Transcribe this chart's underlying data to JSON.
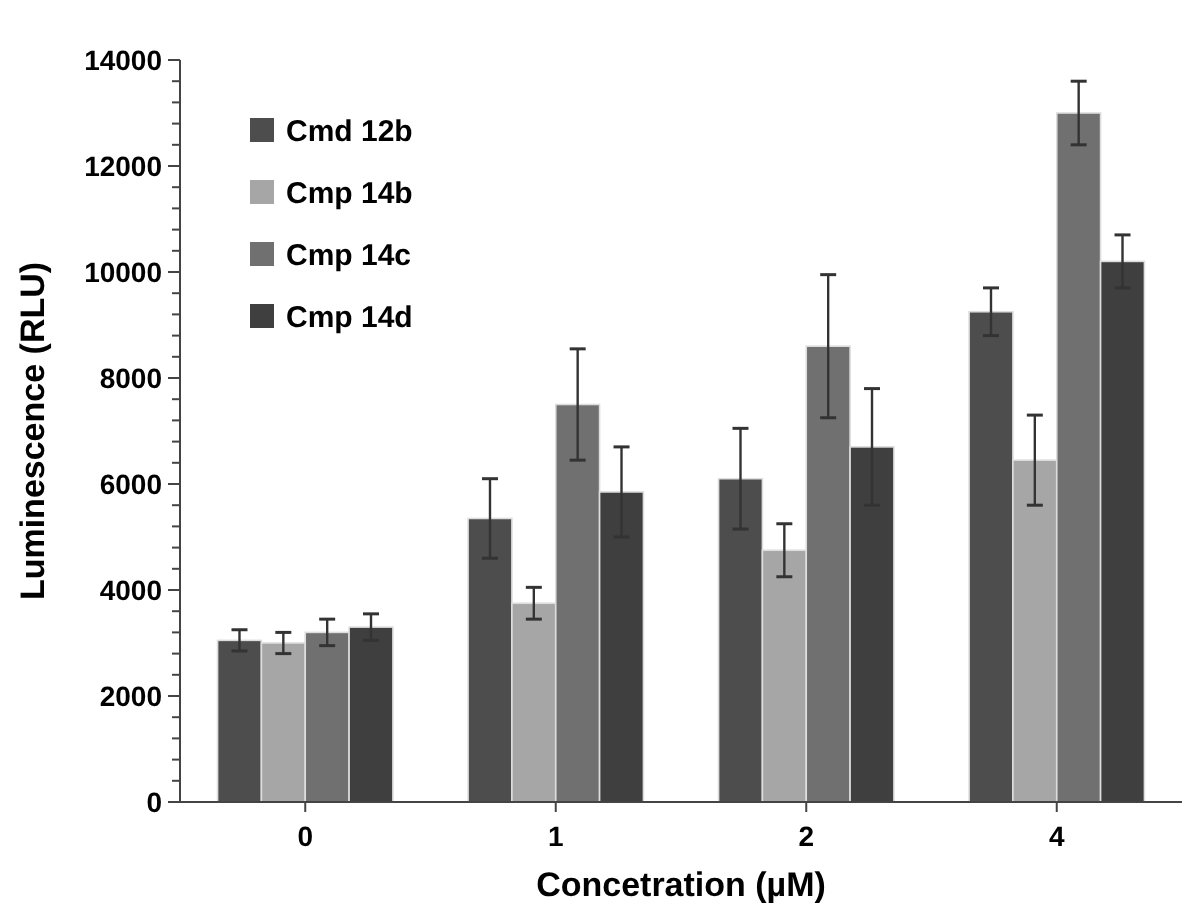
{
  "chart_data": {
    "type": "bar",
    "xlabel": "Concetration (µM)",
    "ylabel": "Luminescence (RLU)",
    "categories": [
      "0",
      "1",
      "2",
      "4"
    ],
    "series": [
      {
        "name": "Cmd 12b",
        "color": "#4d4d4d",
        "values": [
          3050,
          5350,
          6100,
          9250
        ],
        "errors": [
          200,
          750,
          950,
          450
        ]
      },
      {
        "name": "Cmp 14b",
        "color": "#a6a6a6",
        "values": [
          3000,
          3750,
          4750,
          6450
        ],
        "errors": [
          200,
          300,
          500,
          850
        ]
      },
      {
        "name": "Cmp 14c",
        "color": "#707070",
        "values": [
          3200,
          7500,
          8600,
          13000
        ],
        "errors": [
          250,
          1050,
          1350,
          600
        ]
      },
      {
        "name": "Cmp 14d",
        "color": "#3f3f3f",
        "values": [
          3300,
          5850,
          6700,
          10200
        ],
        "errors": [
          250,
          850,
          1100,
          500
        ]
      }
    ],
    "ylim": [
      0,
      14000
    ],
    "yticks": [
      0,
      {
        "value": 400,
        "label": null
      },
      {
        "value": 800,
        "label": null
      },
      {
        "value": 1200,
        "label": null
      },
      {
        "value": 1600,
        "label": null
      },
      2000,
      {
        "value": 2400,
        "label": null
      },
      {
        "value": 2800,
        "label": null
      },
      {
        "value": 3200,
        "label": null
      },
      {
        "value": 3600,
        "label": null
      },
      4000,
      {
        "value": 4400,
        "label": null
      },
      {
        "value": 4800,
        "label": null
      },
      {
        "value": 5200,
        "label": null
      },
      {
        "value": 5600,
        "label": null
      },
      6000,
      {
        "value": 6400,
        "label": null
      },
      {
        "value": 6800,
        "label": null
      },
      {
        "value": 7200,
        "label": null
      },
      {
        "value": 7600,
        "label": null
      },
      8000,
      {
        "value": 8400,
        "label": null
      },
      {
        "value": 8800,
        "label": null
      },
      {
        "value": 9200,
        "label": null
      },
      {
        "value": 9600,
        "label": null
      },
      10000,
      {
        "value": 10400,
        "label": null
      },
      {
        "value": 10800,
        "label": null
      },
      {
        "value": 11200,
        "label": null
      },
      {
        "value": 11600,
        "label": null
      },
      12000,
      {
        "value": 12400,
        "label": null
      },
      {
        "value": 12800,
        "label": null
      },
      {
        "value": 13200,
        "label": null
      },
      {
        "value": 13600,
        "label": null
      },
      14000
    ],
    "grid": false,
    "legend": "top left"
  }
}
